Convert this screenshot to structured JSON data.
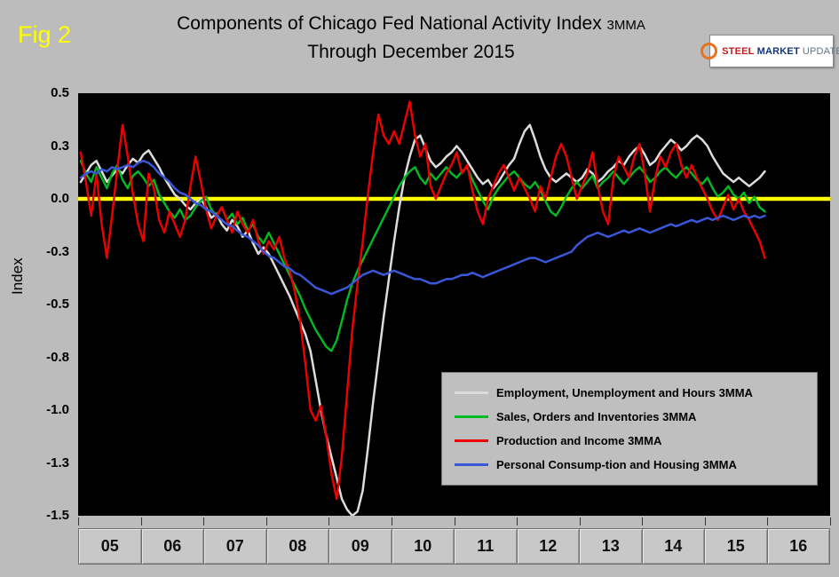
{
  "fig_label": "Fig 2",
  "title": {
    "line1": "Components of Chicago Fed National Activity Index",
    "suffix": "3MMA",
    "line2": "Through December 2015"
  },
  "logo": {
    "word1": "STEEL",
    "word2": "MARKET",
    "word3": "UPDATE"
  },
  "chart_data": {
    "type": "line",
    "title": "Components of Chicago Fed National Activity Index 3MMA Through December 2015",
    "ylabel": "Index",
    "ylim": [
      -1.5,
      0.5
    ],
    "x_start": "2005-01",
    "x_end": "2015-12",
    "x_total_months": 144,
    "plot_bg": "#000000",
    "zero_line_color": "#ffff00",
    "grid": "off",
    "legend_position": "inside-lower-right",
    "y_ticks": [
      {
        "label": "0.5",
        "value": 0.5
      },
      {
        "label": "0.3",
        "value": 0.25
      },
      {
        "label": "0.0",
        "value": 0.0
      },
      {
        "label": "-0.3",
        "value": -0.25
      },
      {
        "label": "-0.5",
        "value": -0.5
      },
      {
        "label": "-0.8",
        "value": -0.75
      },
      {
        "label": "-1.0",
        "value": -1.0
      },
      {
        "label": "-1.3",
        "value": -1.25
      },
      {
        "label": "-1.5",
        "value": -1.5
      }
    ],
    "x_tick_labels": [
      "05",
      "06",
      "07",
      "08",
      "09",
      "10",
      "11",
      "12",
      "13",
      "14",
      "15",
      "16"
    ],
    "series": [
      {
        "name": "Employment, Unemployment and Hours 3MMA",
        "color": "#dcdcdc",
        "stroke_width": 2.5,
        "values": [
          0.08,
          0.12,
          0.16,
          0.18,
          0.13,
          0.08,
          0.11,
          0.14,
          0.12,
          0.16,
          0.19,
          0.17,
          0.21,
          0.23,
          0.19,
          0.15,
          0.1,
          0.06,
          0.02,
          0.0,
          -0.03,
          -0.05,
          -0.02,
          0.0,
          -0.04,
          -0.09,
          -0.07,
          -0.12,
          -0.15,
          -0.1,
          -0.13,
          -0.18,
          -0.15,
          -0.21,
          -0.26,
          -0.23,
          -0.26,
          -0.31,
          -0.36,
          -0.41,
          -0.46,
          -0.52,
          -0.58,
          -0.64,
          -0.72,
          -0.86,
          -1.0,
          -1.12,
          -1.22,
          -1.32,
          -1.42,
          -1.47,
          -1.5,
          -1.48,
          -1.38,
          -1.18,
          -0.96,
          -0.76,
          -0.56,
          -0.38,
          -0.2,
          -0.04,
          0.1,
          0.2,
          0.28,
          0.3,
          0.24,
          0.18,
          0.15,
          0.17,
          0.2,
          0.22,
          0.25,
          0.22,
          0.18,
          0.14,
          0.1,
          0.07,
          0.09,
          0.05,
          0.08,
          0.12,
          0.16,
          0.19,
          0.26,
          0.32,
          0.35,
          0.28,
          0.2,
          0.14,
          0.1,
          0.08,
          0.1,
          0.12,
          0.1,
          0.08,
          0.1,
          0.14,
          0.12,
          0.08,
          0.1,
          0.13,
          0.15,
          0.18,
          0.16,
          0.2,
          0.23,
          0.25,
          0.21,
          0.16,
          0.18,
          0.22,
          0.25,
          0.28,
          0.26,
          0.23,
          0.25,
          0.28,
          0.3,
          0.28,
          0.25,
          0.2,
          0.16,
          0.12,
          0.1,
          0.08,
          0.1,
          0.08,
          0.06,
          0.08,
          0.1,
          0.13
        ]
      },
      {
        "name": "Sales, Orders and Inventories 3MMA",
        "color": "#00bb22",
        "stroke_width": 2.4,
        "values": [
          0.18,
          0.12,
          0.08,
          0.15,
          0.1,
          0.05,
          0.12,
          0.16,
          0.09,
          0.05,
          0.11,
          0.13,
          0.1,
          0.06,
          0.09,
          0.02,
          -0.02,
          -0.06,
          -0.09,
          -0.05,
          -0.1,
          -0.08,
          -0.04,
          -0.01,
          0.01,
          -0.05,
          -0.08,
          -0.04,
          -0.1,
          -0.07,
          -0.12,
          -0.09,
          -0.15,
          -0.12,
          -0.18,
          -0.21,
          -0.16,
          -0.21,
          -0.26,
          -0.31,
          -0.36,
          -0.41,
          -0.46,
          -0.52,
          -0.57,
          -0.62,
          -0.66,
          -0.7,
          -0.72,
          -0.67,
          -0.58,
          -0.48,
          -0.4,
          -0.34,
          -0.29,
          -0.24,
          -0.19,
          -0.14,
          -0.09,
          -0.04,
          0.01,
          0.06,
          0.1,
          0.13,
          0.15,
          0.1,
          0.07,
          0.12,
          0.09,
          0.12,
          0.15,
          0.12,
          0.1,
          0.13,
          0.15,
          0.09,
          0.04,
          -0.01,
          -0.05,
          0.01,
          0.05,
          0.08,
          0.11,
          0.13,
          0.1,
          0.07,
          0.05,
          0.08,
          0.04,
          -0.01,
          -0.06,
          -0.08,
          -0.04,
          0.01,
          0.05,
          0.08,
          0.05,
          0.08,
          0.11,
          0.05,
          0.08,
          0.1,
          0.13,
          0.1,
          0.07,
          0.1,
          0.13,
          0.15,
          0.12,
          0.08,
          0.1,
          0.13,
          0.15,
          0.12,
          0.1,
          0.13,
          0.15,
          0.12,
          0.09,
          0.07,
          0.1,
          0.05,
          0.01,
          0.03,
          0.06,
          0.02,
          0.0,
          0.03,
          -0.02,
          0.01,
          -0.04,
          -0.06
        ]
      },
      {
        "name": "Production and Income 3MMA",
        "color": "#ee0000",
        "stroke_width": 2.4,
        "values": [
          0.22,
          0.08,
          -0.08,
          0.12,
          -0.12,
          -0.28,
          -0.08,
          0.14,
          0.35,
          0.2,
          0.02,
          -0.12,
          -0.2,
          0.12,
          0.05,
          -0.1,
          -0.16,
          -0.06,
          -0.12,
          -0.18,
          -0.1,
          0.06,
          0.2,
          0.08,
          -0.05,
          -0.14,
          -0.08,
          -0.04,
          -0.1,
          -0.16,
          -0.06,
          -0.12,
          -0.16,
          -0.1,
          -0.2,
          -0.26,
          -0.2,
          -0.24,
          -0.18,
          -0.28,
          -0.34,
          -0.44,
          -0.58,
          -0.78,
          -1.0,
          -1.05,
          -0.98,
          -1.12,
          -1.3,
          -1.42,
          -1.22,
          -0.92,
          -0.62,
          -0.4,
          -0.2,
          0.02,
          0.22,
          0.4,
          0.3,
          0.26,
          0.32,
          0.26,
          0.36,
          0.46,
          0.3,
          0.2,
          0.26,
          0.06,
          0.0,
          0.06,
          0.12,
          0.16,
          0.22,
          0.12,
          0.16,
          0.04,
          -0.06,
          -0.12,
          0.0,
          0.06,
          0.12,
          0.16,
          0.1,
          0.04,
          0.1,
          0.05,
          0.0,
          -0.06,
          0.06,
          0.0,
          0.1,
          0.2,
          0.26,
          0.2,
          0.1,
          0.0,
          0.06,
          0.12,
          0.22,
          0.06,
          -0.06,
          -0.12,
          0.1,
          0.2,
          0.15,
          0.1,
          0.2,
          0.26,
          0.12,
          -0.06,
          0.1,
          0.2,
          0.15,
          0.22,
          0.26,
          0.16,
          0.1,
          0.16,
          0.1,
          0.05,
          0.0,
          -0.06,
          -0.1,
          -0.04,
          0.02,
          -0.05,
          0.0,
          -0.06,
          -0.1,
          -0.15,
          -0.2,
          -0.28
        ]
      },
      {
        "name": "Personal Consump-tion and Housing 3MMA",
        "color": "#3a57d8",
        "stroke_width": 2.5,
        "values": [
          0.1,
          0.12,
          0.13,
          0.12,
          0.14,
          0.13,
          0.15,
          0.14,
          0.15,
          0.16,
          0.15,
          0.17,
          0.18,
          0.17,
          0.15,
          0.12,
          0.1,
          0.08,
          0.05,
          0.03,
          0.02,
          0.0,
          -0.02,
          -0.03,
          -0.05,
          -0.06,
          -0.08,
          -0.1,
          -0.12,
          -0.13,
          -0.15,
          -0.17,
          -0.18,
          -0.2,
          -0.22,
          -0.25,
          -0.27,
          -0.28,
          -0.3,
          -0.32,
          -0.33,
          -0.35,
          -0.36,
          -0.38,
          -0.4,
          -0.42,
          -0.43,
          -0.44,
          -0.45,
          -0.44,
          -0.43,
          -0.42,
          -0.4,
          -0.38,
          -0.36,
          -0.35,
          -0.34,
          -0.35,
          -0.36,
          -0.35,
          -0.34,
          -0.35,
          -0.36,
          -0.37,
          -0.38,
          -0.38,
          -0.39,
          -0.4,
          -0.4,
          -0.39,
          -0.38,
          -0.38,
          -0.37,
          -0.36,
          -0.36,
          -0.35,
          -0.36,
          -0.37,
          -0.36,
          -0.35,
          -0.34,
          -0.33,
          -0.32,
          -0.31,
          -0.3,
          -0.29,
          -0.28,
          -0.28,
          -0.29,
          -0.3,
          -0.29,
          -0.28,
          -0.27,
          -0.26,
          -0.25,
          -0.22,
          -0.2,
          -0.18,
          -0.17,
          -0.16,
          -0.17,
          -0.18,
          -0.17,
          -0.16,
          -0.15,
          -0.16,
          -0.15,
          -0.14,
          -0.15,
          -0.16,
          -0.15,
          -0.14,
          -0.13,
          -0.12,
          -0.13,
          -0.12,
          -0.11,
          -0.1,
          -0.11,
          -0.1,
          -0.09,
          -0.1,
          -0.09,
          -0.08,
          -0.09,
          -0.1,
          -0.09,
          -0.08,
          -0.09,
          -0.08,
          -0.09,
          -0.08
        ]
      }
    ]
  }
}
